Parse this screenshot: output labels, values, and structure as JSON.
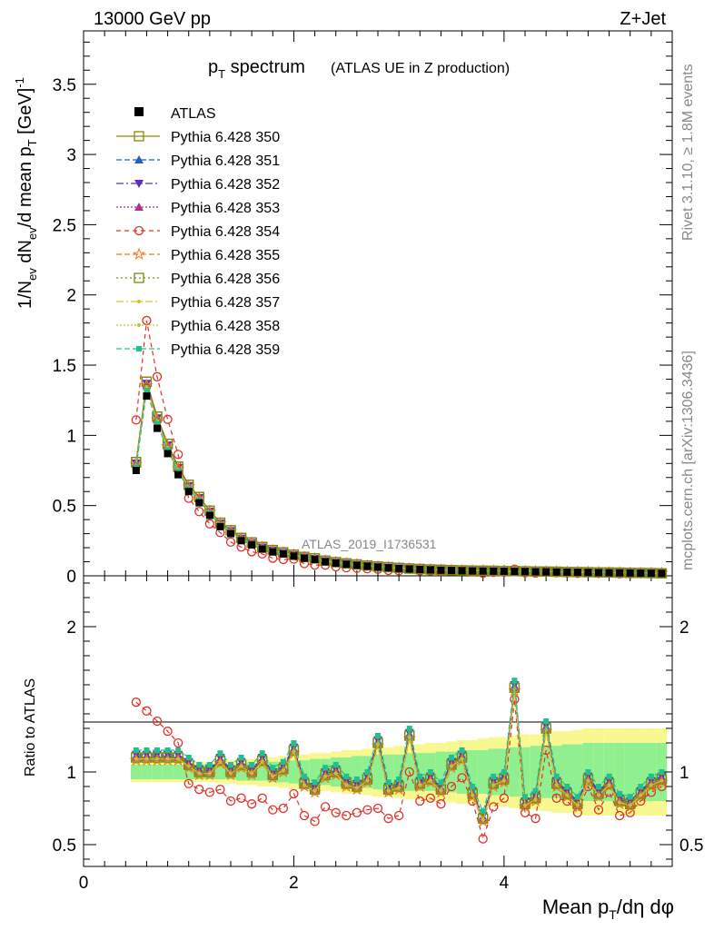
{
  "header": {
    "energy": "13000 GeV pp",
    "process": "Z+Jet"
  },
  "title": {
    "main": "p",
    "main_sub": "T",
    "main_tail": " spectrum",
    "paren": "(ATLAS UE in Z production)"
  },
  "side": {
    "rivet": "Rivet 3.1.10, ≥ 1.8M events",
    "mcplots": "mcplots.cern.ch [arXiv:1306.3436]"
  },
  "analysis_id": "ATLAS_2019_I1736531",
  "colors": {
    "ATLAS": "#000000",
    "350": "#8a8a00",
    "351": "#1f5fbf",
    "352": "#5a2fbf",
    "353": "#b0308a",
    "354": "#e0302a",
    "355": "#f07a20",
    "356": "#7a8a10",
    "357": "#d8c020",
    "358": "#b8c830",
    "359": "#20c090",
    "band_inner": "#90f090",
    "band_outer": "#f8f890"
  },
  "chart_data": {
    "type": "line",
    "title": "p_T spectrum (ATLAS UE in Z production)",
    "xlabel": "Mean p_T/dη dφ",
    "ylabel_top": "1/N_ev dN_ev/d mean p_T [GeV]^-1",
    "ylabel_ratio": "Ratio to ATLAS",
    "xlim": [
      0,
      5.6
    ],
    "ylim_top": [
      0,
      3.88
    ],
    "ylim_ratio": [
      0.35,
      2.35
    ],
    "x_ticks": [
      "0",
      "2",
      "4"
    ],
    "y_ticks_top": [
      "0",
      "0.5",
      "1",
      "1.5",
      "2",
      "2.5",
      "3",
      "3.5"
    ],
    "y_ticks_ratio": [
      "0.5",
      "1",
      "2"
    ],
    "x": [
      0.5,
      0.6,
      0.7,
      0.8,
      0.9,
      1.0,
      1.1,
      1.2,
      1.3,
      1.4,
      1.5,
      1.6,
      1.7,
      1.8,
      1.9,
      2.0,
      2.1,
      2.2,
      2.3,
      2.4,
      2.5,
      2.6,
      2.7,
      2.8,
      2.9,
      3.0,
      3.1,
      3.2,
      3.3,
      3.4,
      3.5,
      3.6,
      3.7,
      3.8,
      3.9,
      4.0,
      4.1,
      4.2,
      4.3,
      4.4,
      4.5,
      4.6,
      4.7,
      4.8,
      4.9,
      5.0,
      5.1,
      5.2,
      5.3,
      5.4,
      5.5
    ],
    "atlas_values": [
      0.75,
      1.28,
      1.05,
      0.87,
      0.72,
      0.6,
      0.52,
      0.43,
      0.35,
      0.3,
      0.25,
      0.22,
      0.19,
      0.17,
      0.155,
      0.14,
      0.125,
      0.115,
      0.1,
      0.09,
      0.082,
      0.075,
      0.068,
      0.062,
      0.057,
      0.052,
      0.048,
      0.045,
      0.042,
      0.04,
      0.038,
      0.036,
      0.035,
      0.034,
      0.033,
      0.032,
      0.031,
      0.03,
      0.029,
      0.028,
      0.027,
      0.026,
      0.025,
      0.024,
      0.023,
      0.022,
      0.021,
      0.02,
      0.019,
      0.018,
      0.017
    ],
    "ratio_base": [
      1.1,
      1.1,
      1.1,
      1.1,
      1.1,
      1.05,
      1.0,
      1.0,
      1.08,
      1.0,
      1.05,
      1.0,
      1.08,
      0.98,
      1.02,
      1.15,
      0.92,
      0.88,
      0.98,
      1.0,
      0.92,
      0.9,
      0.95,
      1.2,
      0.88,
      0.9,
      1.25,
      0.92,
      0.95,
      0.88,
      1.05,
      1.1,
      0.85,
      0.68,
      0.92,
      0.95,
      1.58,
      0.78,
      0.82,
      1.3,
      0.92,
      0.85,
      0.78,
      0.95,
      0.85,
      0.92,
      0.8,
      0.78,
      0.85,
      0.92,
      0.95
    ],
    "ratio_354": [
      1.48,
      1.42,
      1.35,
      1.28,
      1.2,
      0.92,
      0.88,
      0.86,
      0.88,
      0.8,
      0.82,
      0.78,
      0.82,
      0.74,
      0.75,
      0.85,
      0.7,
      0.66,
      0.76,
      0.72,
      0.7,
      0.72,
      0.74,
      0.75,
      0.68,
      0.7,
      1.0,
      0.8,
      0.82,
      0.78,
      0.9,
      0.96,
      0.8,
      0.54,
      0.76,
      0.82,
      1.5,
      0.72,
      0.68,
      1.15,
      0.82,
      0.8,
      0.72,
      0.9,
      0.74,
      0.86,
      0.7,
      0.72,
      0.8,
      0.86,
      0.9
    ],
    "ratio_359_offset": 0.05,
    "series": [
      {
        "name": "ATLAS",
        "key": "ATLAS"
      },
      {
        "name": "Pythia 6.428 350",
        "key": "350"
      },
      {
        "name": "Pythia 6.428 351",
        "key": "351"
      },
      {
        "name": "Pythia 6.428 352",
        "key": "352"
      },
      {
        "name": "Pythia 6.428 353",
        "key": "353"
      },
      {
        "name": "Pythia 6.428 354",
        "key": "354"
      },
      {
        "name": "Pythia 6.428 355",
        "key": "355"
      },
      {
        "name": "Pythia 6.428 356",
        "key": "356"
      },
      {
        "name": "Pythia 6.428 357",
        "key": "357"
      },
      {
        "name": "Pythia 6.428 358",
        "key": "358"
      },
      {
        "name": "Pythia 6.428 359",
        "key": "359"
      }
    ],
    "band_inner_halfwidth": [
      0.05,
      0.05,
      0.05,
      0.05,
      0.05,
      0.05,
      0.05,
      0.05,
      0.05,
      0.05,
      0.06,
      0.06,
      0.06,
      0.07,
      0.07,
      0.08,
      0.08,
      0.09,
      0.09,
      0.1,
      0.1,
      0.11,
      0.11,
      0.12,
      0.12,
      0.12,
      0.13,
      0.13,
      0.13,
      0.14,
      0.14,
      0.15,
      0.15,
      0.15,
      0.16,
      0.16,
      0.17,
      0.17,
      0.18,
      0.18,
      0.18,
      0.19,
      0.19,
      0.2,
      0.2,
      0.2,
      0.2,
      0.2,
      0.2,
      0.2,
      0.2
    ],
    "band_outer_halfwidth": [
      0.07,
      0.07,
      0.07,
      0.07,
      0.07,
      0.07,
      0.07,
      0.07,
      0.08,
      0.08,
      0.09,
      0.09,
      0.1,
      0.1,
      0.11,
      0.12,
      0.12,
      0.13,
      0.13,
      0.14,
      0.15,
      0.15,
      0.16,
      0.17,
      0.17,
      0.18,
      0.19,
      0.19,
      0.2,
      0.2,
      0.21,
      0.22,
      0.22,
      0.23,
      0.24,
      0.24,
      0.25,
      0.26,
      0.26,
      0.27,
      0.28,
      0.28,
      0.29,
      0.3,
      0.3,
      0.3,
      0.3,
      0.3,
      0.3,
      0.3,
      0.3
    ]
  }
}
